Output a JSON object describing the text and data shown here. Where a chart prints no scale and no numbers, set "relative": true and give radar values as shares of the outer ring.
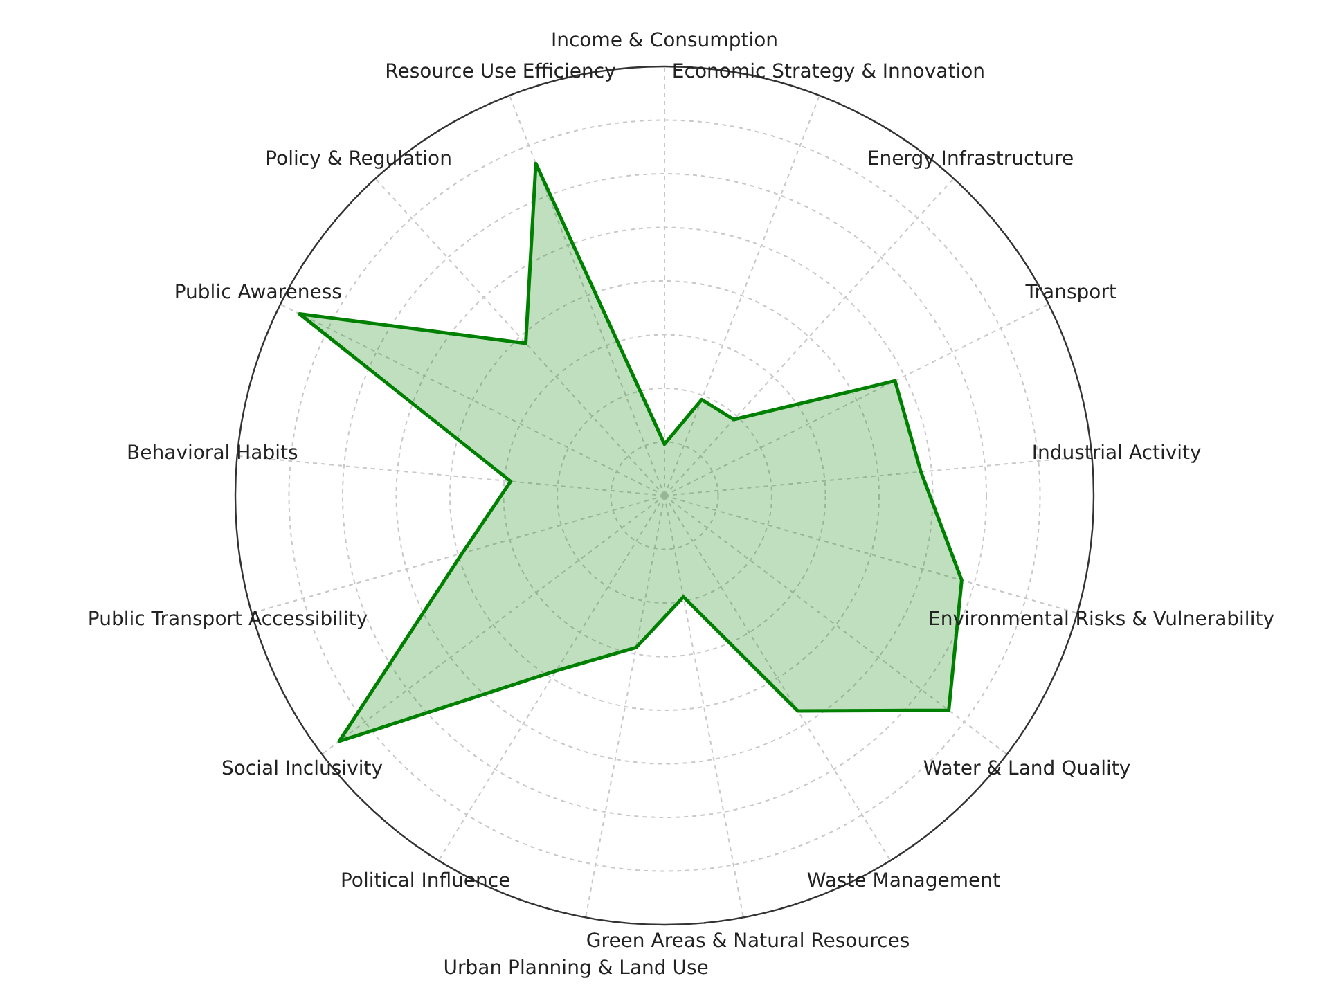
{
  "chart_data": {
    "type": "radar",
    "relative": true,
    "grid": true,
    "categories": [
      "Income & Consumption",
      "Economic Strategy & Innovation",
      "Energy Infrastructure",
      "Transport",
      "Industrial Activity",
      "Environmental Risks & Vulnerability",
      "Water & Land Quality",
      "Waste Management",
      "Green Areas & Natural Resources",
      "Urban Planning & Land Use",
      "Political Influence",
      "Social Inclusivity",
      "Public Transport Accessibility",
      "Behavioral Habits",
      "Public Awareness",
      "Policy & Regulation",
      "Resource Use Efficiency"
    ],
    "series": [
      {
        "color": "#008000",
        "values": [
          0.12,
          0.24,
          0.24,
          0.6,
          0.6,
          0.72,
          0.83,
          0.59,
          0.24,
          0.36,
          0.48,
          0.95,
          0.49,
          0.36,
          0.95,
          0.48,
          0.83
        ]
      }
    ]
  }
}
